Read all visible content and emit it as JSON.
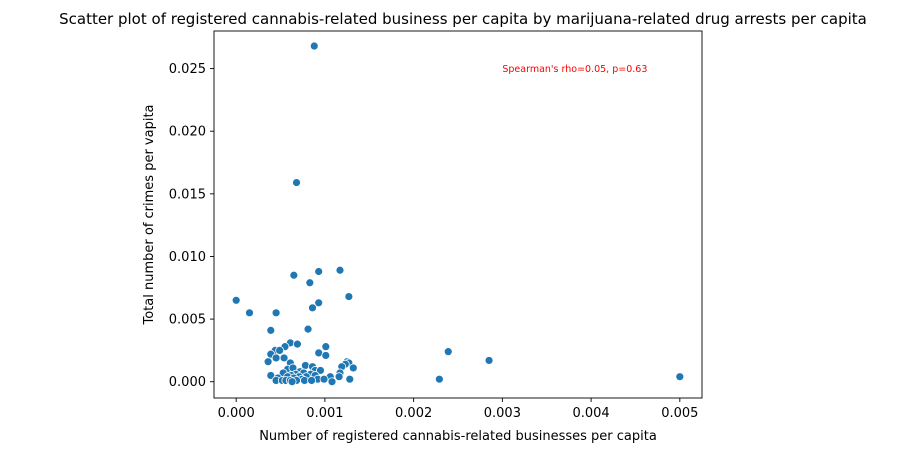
{
  "chart_data": {
    "type": "scatter",
    "title": "Scatter plot of registered cannabis-related business per capita by marijuana-related drug arrests per capita",
    "xlabel": "Number of registered cannabis-related businesses per capita",
    "ylabel": "Total number of crimes per vapita",
    "xlim": [
      -0.00025,
      0.00525
    ],
    "ylim": [
      -0.0013,
      0.028
    ],
    "xticks": [
      0.0,
      0.001,
      0.002,
      0.003,
      0.004,
      0.005
    ],
    "xtick_labels": [
      "0.000",
      "0.001",
      "0.002",
      "0.003",
      "0.004",
      "0.005"
    ],
    "yticks": [
      0.0,
      0.005,
      0.01,
      0.015,
      0.02,
      0.025
    ],
    "ytick_labels": [
      "0.000",
      "0.005",
      "0.010",
      "0.015",
      "0.020",
      "0.025"
    ],
    "grid": false,
    "marker_color": "#1f77b4",
    "annotation": {
      "text": "Spearman's rho=0.05, p=0.63",
      "x": 0.003,
      "y": 0.025,
      "color": "#ff0000"
    },
    "points": [
      {
        "x": 0.00088,
        "y": 0.0268
      },
      {
        "x": 0.00068,
        "y": 0.0159
      },
      {
        "x": 0.00117,
        "y": 0.0089
      },
      {
        "x": 0.00093,
        "y": 0.0088
      },
      {
        "x": 0.00065,
        "y": 0.0085
      },
      {
        "x": 0.00083,
        "y": 0.0079
      },
      {
        "x": 0.00127,
        "y": 0.0068
      },
      {
        "x": 0.0,
        "y": 0.0065
      },
      {
        "x": 0.00093,
        "y": 0.0063
      },
      {
        "x": 0.00086,
        "y": 0.0059
      },
      {
        "x": 0.00015,
        "y": 0.0055
      },
      {
        "x": 0.00045,
        "y": 0.0055
      },
      {
        "x": 0.00081,
        "y": 0.0042
      },
      {
        "x": 0.00039,
        "y": 0.0041
      },
      {
        "x": 0.00061,
        "y": 0.0031
      },
      {
        "x": 0.00069,
        "y": 0.003
      },
      {
        "x": 0.00055,
        "y": 0.0028
      },
      {
        "x": 0.00101,
        "y": 0.0028
      },
      {
        "x": 0.00044,
        "y": 0.0025
      },
      {
        "x": 0.00049,
        "y": 0.0025
      },
      {
        "x": 0.00039,
        "y": 0.0022
      },
      {
        "x": 0.00093,
        "y": 0.0023
      },
      {
        "x": 0.00101,
        "y": 0.0021
      },
      {
        "x": 0.00045,
        "y": 0.0019
      },
      {
        "x": 0.00054,
        "y": 0.0019
      },
      {
        "x": 0.00036,
        "y": 0.0016
      },
      {
        "x": 0.00061,
        "y": 0.0015
      },
      {
        "x": 0.00125,
        "y": 0.0016
      },
      {
        "x": 0.00127,
        "y": 0.0015
      },
      {
        "x": 0.00123,
        "y": 0.0014
      },
      {
        "x": 0.00078,
        "y": 0.0013
      },
      {
        "x": 0.00086,
        "y": 0.0012
      },
      {
        "x": 0.00119,
        "y": 0.0012
      },
      {
        "x": 0.00132,
        "y": 0.0011
      },
      {
        "x": 0.00058,
        "y": 0.001
      },
      {
        "x": 0.00064,
        "y": 0.0011
      },
      {
        "x": 0.00089,
        "y": 0.0009
      },
      {
        "x": 0.00095,
        "y": 0.0009
      },
      {
        "x": 0.00072,
        "y": 0.0008
      },
      {
        "x": 0.00053,
        "y": 0.0007
      },
      {
        "x": 0.00076,
        "y": 0.0007
      },
      {
        "x": 0.00084,
        "y": 0.0006
      },
      {
        "x": 0.00117,
        "y": 0.0007
      },
      {
        "x": 0.00067,
        "y": 0.0006
      },
      {
        "x": 0.00062,
        "y": 0.0005
      },
      {
        "x": 0.00089,
        "y": 0.0005
      },
      {
        "x": 0.00039,
        "y": 0.0005
      },
      {
        "x": 0.00058,
        "y": 0.0004
      },
      {
        "x": 0.00071,
        "y": 0.0004
      },
      {
        "x": 0.00079,
        "y": 0.0004
      },
      {
        "x": 0.00106,
        "y": 0.0004
      },
      {
        "x": 0.00116,
        "y": 0.0004
      },
      {
        "x": 0.00047,
        "y": 0.0003
      },
      {
        "x": 0.00065,
        "y": 0.0003
      },
      {
        "x": 0.00074,
        "y": 0.0002
      },
      {
        "x": 0.00092,
        "y": 0.0002
      },
      {
        "x": 0.00099,
        "y": 0.0002
      },
      {
        "x": 0.00128,
        "y": 0.0002
      },
      {
        "x": 0.00045,
        "y": 0.0001
      },
      {
        "x": 0.00052,
        "y": 0.0001
      },
      {
        "x": 0.00056,
        "y": 0.0001
      },
      {
        "x": 0.00061,
        "y": 0.0001
      },
      {
        "x": 0.00068,
        "y": 0.0001
      },
      {
        "x": 0.00077,
        "y": 0.0001
      },
      {
        "x": 0.00085,
        "y": 0.0001
      },
      {
        "x": 0.00063,
        "y": 0.0
      },
      {
        "x": 0.00108,
        "y": 0.0
      },
      {
        "x": 0.00239,
        "y": 0.0024
      },
      {
        "x": 0.00285,
        "y": 0.0017
      },
      {
        "x": 0.00229,
        "y": 0.0002
      },
      {
        "x": 0.005,
        "y": 0.0004
      }
    ]
  }
}
